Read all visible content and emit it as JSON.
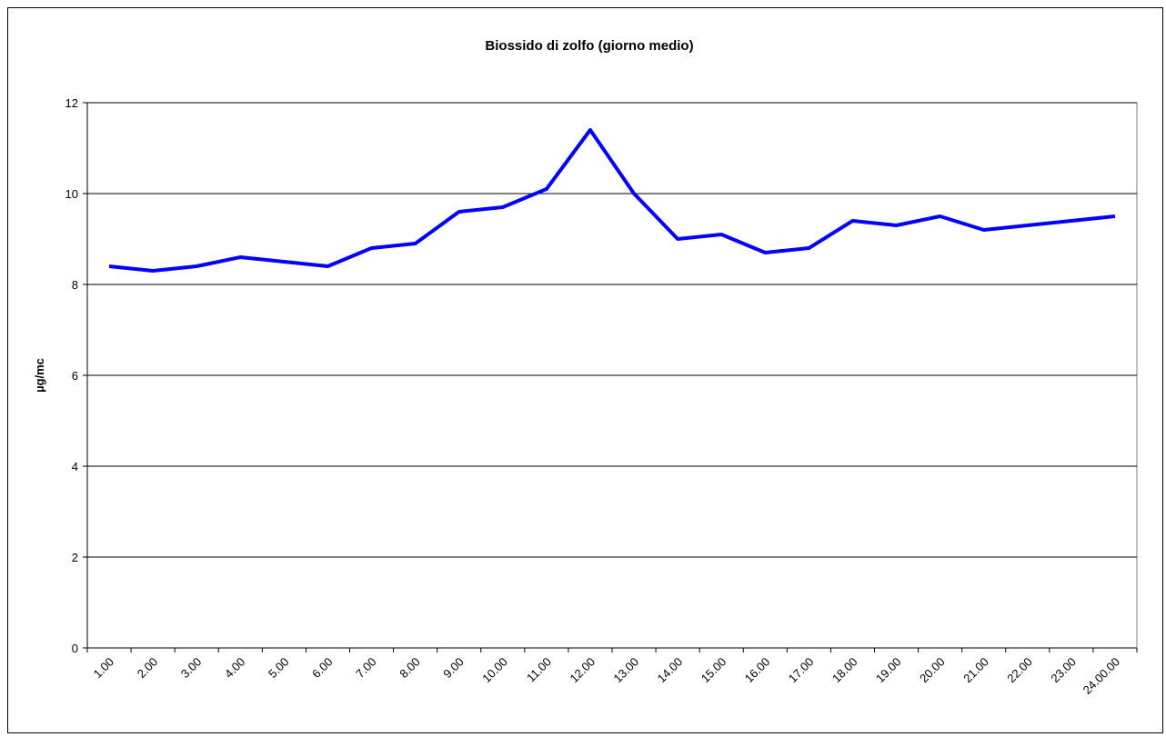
{
  "chart_data": {
    "type": "line",
    "title": "Biossido di zolfo (giorno medio)",
    "y_label": "µg/mc",
    "categories": [
      "1.00",
      "2.00",
      "3.00",
      "4.00",
      "5.00",
      "6.00",
      "7.00",
      "8.00",
      "9.00",
      "10.00",
      "11.00",
      "12.00",
      "13.00",
      "14.00",
      "15.00",
      "16.00",
      "17.00",
      "18.00",
      "19.00",
      "20.00",
      "21.00",
      "22.00",
      "23.00",
      "24.00.00"
    ],
    "series": [
      {
        "name": "Biossido di zolfo",
        "color": "#0000ff",
        "values": [
          8.4,
          8.3,
          8.4,
          8.6,
          8.5,
          8.4,
          8.8,
          8.9,
          9.6,
          9.7,
          10.1,
          11.4,
          10.0,
          9.0,
          9.1,
          8.7,
          8.8,
          9.4,
          9.3,
          9.5,
          9.2,
          9.3,
          9.4,
          9.5
        ]
      }
    ],
    "ylim": [
      0,
      12
    ],
    "yticks": [
      0,
      2,
      4,
      6,
      8,
      10,
      12
    ],
    "grid": true
  }
}
